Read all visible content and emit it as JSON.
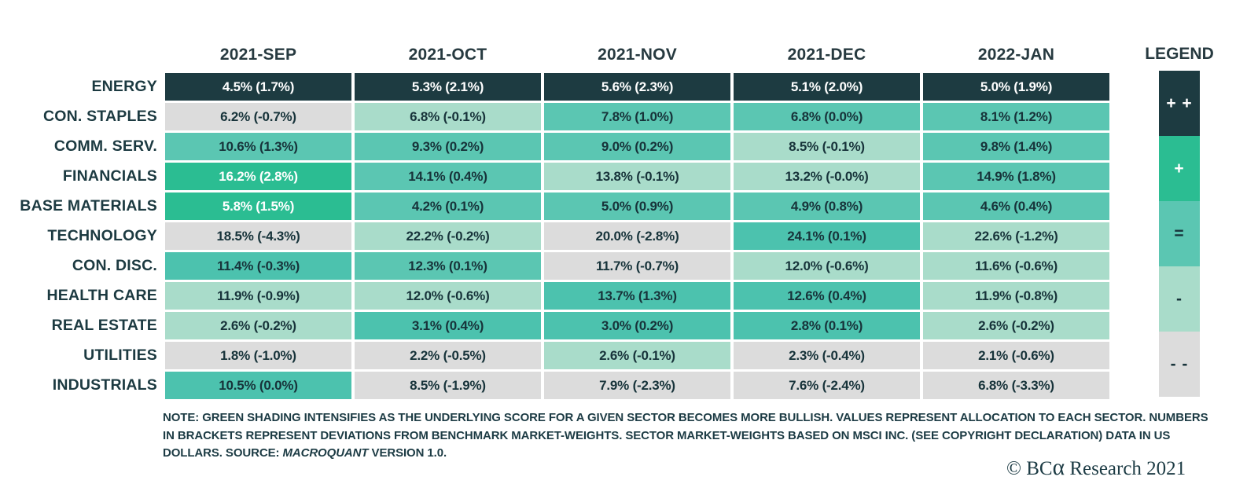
{
  "palette": {
    "pp": {
      "bg": "#1d3b41",
      "fg": "#ffffff"
    },
    "p": {
      "bg": "#2bbd92",
      "fg": "#ffffff"
    },
    "eq_dark": {
      "bg": "#4cc2ae",
      "fg": "#17333a"
    },
    "eq": {
      "bg": "#5bc6b2",
      "fg": "#17333a"
    },
    "minus": {
      "bg": "#a9dcca",
      "fg": "#17333a"
    },
    "mm": {
      "bg": "#dcdcdc",
      "fg": "#17333a"
    }
  },
  "header": {
    "columns": [
      "2021-SEP",
      "2021-OCT",
      "2021-NOV",
      "2021-DEC",
      "2022-JAN"
    ]
  },
  "rows": [
    {
      "label": "ENERGY",
      "cells": [
        {
          "text": "4.5% (1.7%)",
          "shade": "pp"
        },
        {
          "text": "5.3% (2.1%)",
          "shade": "pp"
        },
        {
          "text": "5.6% (2.3%)",
          "shade": "pp"
        },
        {
          "text": "5.1% (2.0%)",
          "shade": "pp"
        },
        {
          "text": "5.0% (1.9%)",
          "shade": "pp"
        }
      ]
    },
    {
      "label": "CON. STAPLES",
      "cells": [
        {
          "text": "6.2% (-0.7%)",
          "shade": "mm"
        },
        {
          "text": "6.8% (-0.1%)",
          "shade": "minus"
        },
        {
          "text": "7.8% (1.0%)",
          "shade": "eq"
        },
        {
          "text": "6.8% (0.0%)",
          "shade": "eq"
        },
        {
          "text": "8.1% (1.2%)",
          "shade": "eq"
        }
      ]
    },
    {
      "label": "COMM. SERV.",
      "cells": [
        {
          "text": "10.6% (1.3%)",
          "shade": "eq"
        },
        {
          "text": "9.3% (0.2%)",
          "shade": "eq"
        },
        {
          "text": "9.0% (0.2%)",
          "shade": "eq"
        },
        {
          "text": "8.5% (-0.1%)",
          "shade": "minus"
        },
        {
          "text": "9.8% (1.4%)",
          "shade": "eq"
        }
      ]
    },
    {
      "label": "FINANCIALS",
      "cells": [
        {
          "text": "16.2% (2.8%)",
          "shade": "p"
        },
        {
          "text": "14.1% (0.4%)",
          "shade": "eq"
        },
        {
          "text": "13.8% (-0.1%)",
          "shade": "minus"
        },
        {
          "text": "13.2% (-0.0%)",
          "shade": "minus"
        },
        {
          "text": "14.9% (1.8%)",
          "shade": "eq"
        }
      ]
    },
    {
      "label": "BASE MATERIALS",
      "cells": [
        {
          "text": "5.8% (1.5%)",
          "shade": "p"
        },
        {
          "text": "4.2% (0.1%)",
          "shade": "eq"
        },
        {
          "text": "5.0% (0.9%)",
          "shade": "eq"
        },
        {
          "text": "4.9% (0.8%)",
          "shade": "eq"
        },
        {
          "text": "4.6% (0.4%)",
          "shade": "eq"
        }
      ]
    },
    {
      "label": "TECHNOLOGY",
      "cells": [
        {
          "text": "18.5% (-4.3%)",
          "shade": "mm"
        },
        {
          "text": "22.2% (-0.2%)",
          "shade": "minus"
        },
        {
          "text": "20.0% (-2.8%)",
          "shade": "mm"
        },
        {
          "text": "24.1% (0.1%)",
          "shade": "eq_dark"
        },
        {
          "text": "22.6% (-1.2%)",
          "shade": "minus"
        }
      ]
    },
    {
      "label": "CON. DISC.",
      "cells": [
        {
          "text": "11.4% (-0.3%)",
          "shade": "eq_dark"
        },
        {
          "text": "12.3% (0.1%)",
          "shade": "eq"
        },
        {
          "text": "11.7% (-0.7%)",
          "shade": "mm"
        },
        {
          "text": "12.0% (-0.6%)",
          "shade": "minus"
        },
        {
          "text": "11.6% (-0.6%)",
          "shade": "minus"
        }
      ]
    },
    {
      "label": "HEALTH CARE",
      "cells": [
        {
          "text": "11.9% (-0.9%)",
          "shade": "minus"
        },
        {
          "text": "12.0% (-0.6%)",
          "shade": "minus"
        },
        {
          "text": "13.7% (1.3%)",
          "shade": "eq_dark"
        },
        {
          "text": "12.6% (0.4%)",
          "shade": "eq_dark"
        },
        {
          "text": "11.9% (-0.8%)",
          "shade": "minus"
        }
      ]
    },
    {
      "label": "REAL ESTATE",
      "cells": [
        {
          "text": "2.6% (-0.2%)",
          "shade": "minus"
        },
        {
          "text": "3.1% (0.4%)",
          "shade": "eq_dark"
        },
        {
          "text": "3.0% (0.2%)",
          "shade": "eq_dark"
        },
        {
          "text": "2.8% (0.1%)",
          "shade": "eq_dark"
        },
        {
          "text": "2.6% (-0.2%)",
          "shade": "minus"
        }
      ]
    },
    {
      "label": "UTILITIES",
      "cells": [
        {
          "text": "1.8% (-1.0%)",
          "shade": "mm"
        },
        {
          "text": "2.2% (-0.5%)",
          "shade": "mm"
        },
        {
          "text": "2.6% (-0.1%)",
          "shade": "minus"
        },
        {
          "text": "2.3% (-0.4%)",
          "shade": "mm"
        },
        {
          "text": "2.1% (-0.6%)",
          "shade": "mm"
        }
      ]
    },
    {
      "label": "INDUSTRIALS",
      "cells": [
        {
          "text": "10.5% (0.0%)",
          "shade": "eq_dark"
        },
        {
          "text": "8.5% (-1.9%)",
          "shade": "mm"
        },
        {
          "text": "7.9% (-2.3%)",
          "shade": "mm"
        },
        {
          "text": "7.6% (-2.4%)",
          "shade": "mm"
        },
        {
          "text": "6.8% (-3.3%)",
          "shade": "mm"
        }
      ]
    }
  ],
  "legend": {
    "title": "LEGEND",
    "items": [
      {
        "symbol": "+ +",
        "shade": "pp"
      },
      {
        "symbol": "+",
        "shade": "p"
      },
      {
        "symbol": "=",
        "shade": "eq"
      },
      {
        "symbol": "-",
        "shade": "minus"
      },
      {
        "symbol": "- -",
        "shade": "mm"
      }
    ]
  },
  "note": {
    "prefix": "NOTE: GREEN SHADING INTENSIFIES AS THE UNDERLYING SCORE FOR A GIVEN SECTOR BECOMES MORE BULLISH. VALUES REPRESENT ALLOCATION TO EACH SECTOR. NUMBERS IN BRACKETS REPRESENT DEVIATIONS FROM BENCHMARK MARKET-WEIGHTS. SECTOR MARKET-WEIGHTS BASED ON MSCI INC. (SEE COPYRIGHT DECLARATION) DATA IN US DOLLARS. SOURCE: ",
    "source": "MACROQUANT",
    "suffix": " VERSION 1.0."
  },
  "footer": {
    "copyright_prefix": "© BC",
    "copyright_alpha": "α",
    "copyright_suffix": " Research 2021"
  },
  "chart_data": {
    "type": "heatmap",
    "title": "",
    "columns": [
      "2021-SEP",
      "2021-OCT",
      "2021-NOV",
      "2021-DEC",
      "2022-JAN"
    ],
    "rows": [
      "ENERGY",
      "CON. STAPLES",
      "COMM. SERV.",
      "FINANCIALS",
      "BASE MATERIALS",
      "TECHNOLOGY",
      "CON. DISC.",
      "HEALTH CARE",
      "REAL ESTATE",
      "UTILITIES",
      "INDUSTRIALS"
    ],
    "allocation_pct": [
      [
        4.5,
        5.3,
        5.6,
        5.1,
        5.0
      ],
      [
        6.2,
        6.8,
        7.8,
        6.8,
        8.1
      ],
      [
        10.6,
        9.3,
        9.0,
        8.5,
        9.8
      ],
      [
        16.2,
        14.1,
        13.8,
        13.2,
        14.9
      ],
      [
        5.8,
        4.2,
        5.0,
        4.9,
        4.6
      ],
      [
        18.5,
        22.2,
        20.0,
        24.1,
        22.6
      ],
      [
        11.4,
        12.3,
        11.7,
        12.0,
        11.6
      ],
      [
        11.9,
        12.0,
        13.7,
        12.6,
        11.9
      ],
      [
        2.6,
        3.1,
        3.0,
        2.8,
        2.6
      ],
      [
        1.8,
        2.2,
        2.6,
        2.3,
        2.1
      ],
      [
        10.5,
        8.5,
        7.9,
        7.6,
        6.8
      ]
    ],
    "deviation_from_benchmark_pct": [
      [
        1.7,
        2.1,
        2.3,
        2.0,
        1.9
      ],
      [
        -0.7,
        -0.1,
        1.0,
        0.0,
        1.2
      ],
      [
        1.3,
        0.2,
        0.2,
        -0.1,
        1.4
      ],
      [
        2.8,
        0.4,
        -0.1,
        -0.0,
        1.8
      ],
      [
        1.5,
        0.1,
        0.9,
        0.8,
        0.4
      ],
      [
        -4.3,
        -0.2,
        -2.8,
        0.1,
        -1.2
      ],
      [
        -0.3,
        0.1,
        -0.7,
        -0.6,
        -0.6
      ],
      [
        -0.9,
        -0.6,
        1.3,
        0.4,
        -0.8
      ],
      [
        -0.2,
        0.4,
        0.2,
        0.1,
        -0.2
      ],
      [
        -1.0,
        -0.5,
        -0.1,
        -0.4,
        -0.6
      ],
      [
        0.0,
        -1.9,
        -2.3,
        -2.4,
        -3.3
      ]
    ],
    "legend_levels": [
      "++",
      "+",
      "=",
      "-",
      "--"
    ],
    "legend_position": "right",
    "grid": false
  }
}
